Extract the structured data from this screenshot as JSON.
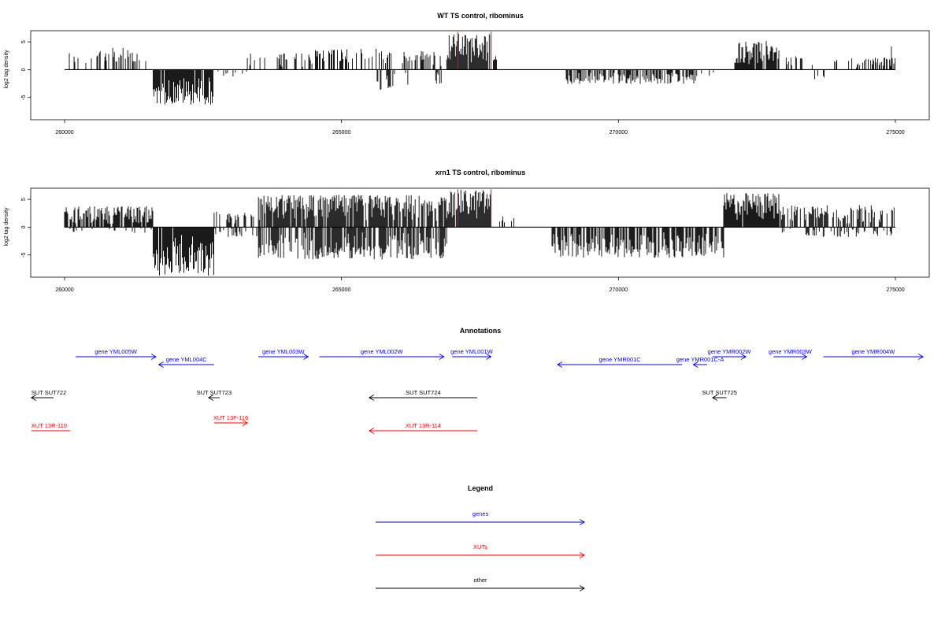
{
  "colors": {
    "gene": "#0000ff",
    "xut": "#ff0000",
    "other": "#000000",
    "highlight": "#ff0000",
    "bars": "#000000"
  },
  "chart_data": [
    {
      "type": "bar",
      "title": "WT TS control, ribominus",
      "ylabel": "log2 tag density",
      "xlim": [
        260000,
        275000
      ],
      "ylim": [
        -9,
        7
      ],
      "x_ticks": [
        "260000",
        "265000",
        "270000",
        "275000"
      ],
      "y_ticks": [
        "5",
        "0",
        "-5"
      ],
      "highlight_lines_x": [
        267100,
        267700
      ],
      "regions": [
        {
          "from": 260000,
          "to": 261550,
          "sign": 1,
          "max": 3.2,
          "density": 0.25
        },
        {
          "from": 260600,
          "to": 261300,
          "sign": 1,
          "max": 4.2,
          "density": 0.3
        },
        {
          "from": 261600,
          "to": 262700,
          "sign": -1,
          "max": 6.3,
          "density": 0.95
        },
        {
          "from": 262700,
          "to": 263300,
          "sign": -1,
          "max": 1.5,
          "density": 0.1
        },
        {
          "from": 263300,
          "to": 264500,
          "sign": 1,
          "max": 3.0,
          "density": 0.3
        },
        {
          "from": 264500,
          "to": 265900,
          "sign": 1,
          "max": 3.8,
          "density": 0.45
        },
        {
          "from": 265600,
          "to": 266200,
          "sign": -1,
          "max": 3.8,
          "density": 0.4
        },
        {
          "from": 266100,
          "to": 266800,
          "sign": 1,
          "max": 3.5,
          "density": 0.35
        },
        {
          "from": 266700,
          "to": 266800,
          "sign": -1,
          "max": 3.0,
          "density": 0.5
        },
        {
          "from": 266900,
          "to": 267700,
          "sign": 1,
          "max": 6.5,
          "density": 0.95
        },
        {
          "from": 267700,
          "to": 267800,
          "sign": 1,
          "max": 2.5,
          "density": 0.3
        },
        {
          "from": 269000,
          "to": 271400,
          "sign": -1,
          "max": 2.6,
          "density": 0.6
        },
        {
          "from": 271300,
          "to": 271800,
          "sign": -1,
          "max": 1.2,
          "density": 0.2
        },
        {
          "from": 272100,
          "to": 272900,
          "sign": 1,
          "max": 5.2,
          "density": 0.95
        },
        {
          "from": 273000,
          "to": 273600,
          "sign": 1,
          "max": 2.4,
          "density": 0.35
        },
        {
          "from": 273300,
          "to": 273800,
          "sign": -1,
          "max": 2.2,
          "density": 0.15
        },
        {
          "from": 273900,
          "to": 275000,
          "sign": 1,
          "max": 2.2,
          "density": 0.35
        },
        {
          "from": 274900,
          "to": 275000,
          "sign": 1,
          "max": 4.5,
          "density": 0.5
        }
      ]
    },
    {
      "type": "bar",
      "title": "xrn1 TS control, ribominus",
      "ylabel": "log2 tag density",
      "xlim": [
        260000,
        275000
      ],
      "ylim": [
        -9,
        7
      ],
      "x_ticks": [
        "260000",
        "265000",
        "270000",
        "275000"
      ],
      "y_ticks": [
        "5",
        "0",
        "-5"
      ],
      "highlight_lines_x": [
        267100,
        267700
      ],
      "regions": [
        {
          "from": 260000,
          "to": 261600,
          "sign": 1,
          "max": 3.8,
          "density": 0.8
        },
        {
          "from": 260000,
          "to": 261600,
          "sign": -1,
          "max": 1.2,
          "density": 0.2
        },
        {
          "from": 261600,
          "to": 262700,
          "sign": -1,
          "max": 8.8,
          "density": 0.98
        },
        {
          "from": 262700,
          "to": 263500,
          "sign": 1,
          "max": 2.8,
          "density": 0.4
        },
        {
          "from": 262700,
          "to": 263500,
          "sign": -1,
          "max": 1.8,
          "density": 0.3
        },
        {
          "from": 263500,
          "to": 266900,
          "sign": 1,
          "max": 5.8,
          "density": 0.85
        },
        {
          "from": 263500,
          "to": 266900,
          "sign": -1,
          "max": 5.8,
          "density": 0.7
        },
        {
          "from": 266900,
          "to": 267700,
          "sign": 1,
          "max": 6.8,
          "density": 0.98
        },
        {
          "from": 267700,
          "to": 268400,
          "sign": 1,
          "max": 2.0,
          "density": 0.15
        },
        {
          "from": 268800,
          "to": 271900,
          "sign": -1,
          "max": 5.5,
          "density": 0.75
        },
        {
          "from": 271900,
          "to": 272900,
          "sign": 1,
          "max": 6.2,
          "density": 0.98
        },
        {
          "from": 272900,
          "to": 275000,
          "sign": 1,
          "max": 4.0,
          "density": 0.55
        },
        {
          "from": 272900,
          "to": 275000,
          "sign": -1,
          "max": 1.8,
          "density": 0.25
        }
      ]
    }
  ],
  "annotations": {
    "title": "Annotations",
    "xlim": [
      260000,
      275000
    ],
    "items": [
      {
        "label": "gene YML005W",
        "type": "gene",
        "start": 260200,
        "end": 261650,
        "dir": "right",
        "row": 0
      },
      {
        "label": "gene YML004C",
        "type": "gene",
        "start": 261700,
        "end": 262700,
        "dir": "left",
        "row": 1
      },
      {
        "label": "gene YML003W",
        "type": "gene",
        "start": 263500,
        "end": 264400,
        "dir": "right",
        "row": 0
      },
      {
        "label": "gene YML002W",
        "type": "gene",
        "start": 264600,
        "end": 266850,
        "dir": "right",
        "row": 0
      },
      {
        "label": "gene YML001W",
        "type": "gene",
        "start": 267000,
        "end": 267700,
        "dir": "right",
        "row": 0
      },
      {
        "label": "gene YMR001C",
        "type": "gene",
        "start": 268900,
        "end": 271150,
        "dir": "left",
        "row": 1
      },
      {
        "label": "gene YMR001C-A",
        "type": "gene",
        "start": 271350,
        "end": 271600,
        "dir": "left",
        "row": 1
      },
      {
        "label": "gene YMR002W",
        "type": "gene",
        "start": 271700,
        "end": 272300,
        "dir": "right",
        "row": 0
      },
      {
        "label": "gene YMR003W",
        "type": "gene",
        "start": 272800,
        "end": 273400,
        "dir": "right",
        "row": 0
      },
      {
        "label": "gene YMR004W",
        "type": "gene",
        "start": 273700,
        "end": 275500,
        "dir": "right",
        "row": 0
      },
      {
        "label": "SUT SUT722",
        "type": "other",
        "start": 259400,
        "end": 259800,
        "dir": "left",
        "row": 2
      },
      {
        "label": "SUT SUT723",
        "type": "other",
        "start": 262600,
        "end": 262800,
        "dir": "left",
        "row": 2
      },
      {
        "label": "SUT SUT724",
        "type": "other",
        "start": 265500,
        "end": 267450,
        "dir": "left",
        "row": 2
      },
      {
        "label": "SUT SUT725",
        "type": "other",
        "start": 271700,
        "end": 271950,
        "dir": "left",
        "row": 2
      },
      {
        "label": "XUT 13R-110",
        "type": "xut",
        "start": 259400,
        "end": 260100,
        "dir": "none",
        "row": 4
      },
      {
        "label": "XUT 13F-116",
        "type": "xut",
        "start": 262700,
        "end": 263300,
        "dir": "right",
        "row": 3
      },
      {
        "label": "XUT 13R-114",
        "type": "xut",
        "start": 265500,
        "end": 267450,
        "dir": "left",
        "row": 4
      }
    ]
  },
  "legend": {
    "title": "Legend",
    "entries": [
      {
        "label": "genes",
        "type": "gene"
      },
      {
        "label": "XUTs",
        "type": "xut"
      },
      {
        "label": "other",
        "type": "other"
      }
    ]
  }
}
